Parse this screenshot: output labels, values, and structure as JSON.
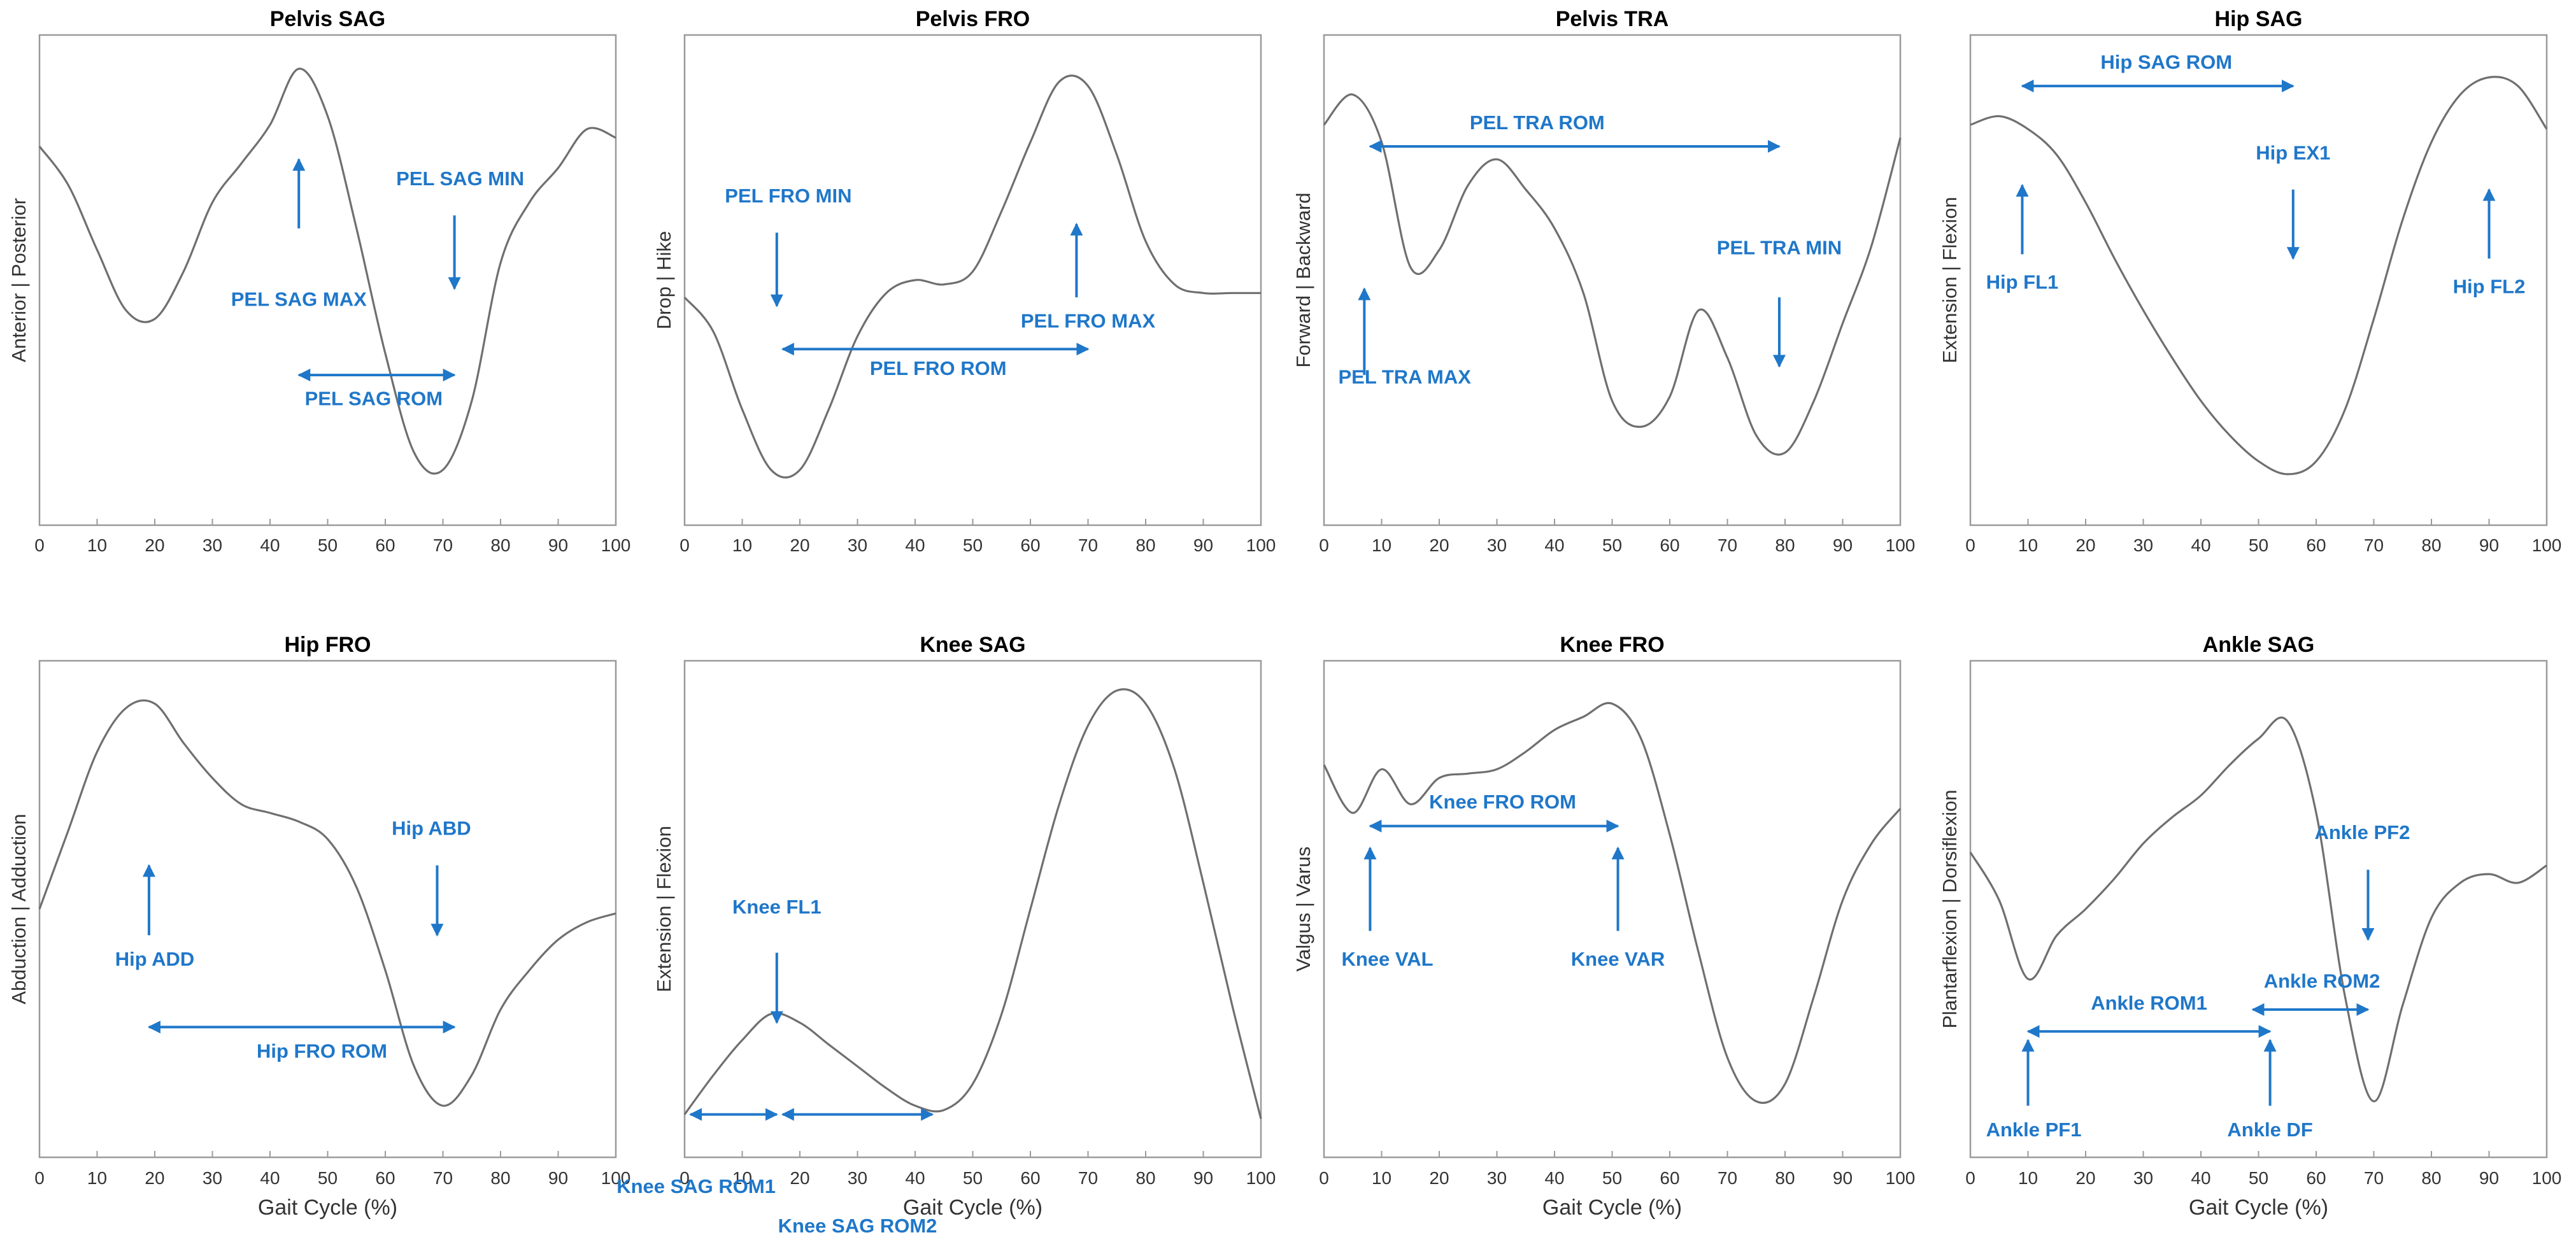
{
  "x_axis_label": "Gait Cycle (%)",
  "accent_color": "#1f77c9",
  "chart_data": [
    {
      "type": "line",
      "title": "Pelvis SAG",
      "ylabel": "Anterior | Posterior",
      "xlabel": "",
      "xlim": [
        0,
        100
      ],
      "ylim": [
        0,
        1
      ],
      "xticks": [
        0,
        10,
        20,
        30,
        40,
        50,
        60,
        70,
        80,
        90,
        100
      ],
      "x": [
        0,
        5,
        10,
        15,
        20,
        25,
        30,
        35,
        40,
        45,
        50,
        55,
        60,
        65,
        70,
        75,
        80,
        85,
        90,
        95,
        100
      ],
      "y": [
        0.81,
        0.72,
        0.57,
        0.43,
        0.41,
        0.52,
        0.68,
        0.77,
        0.86,
        0.99,
        0.88,
        0.62,
        0.33,
        0.1,
        0.06,
        0.22,
        0.54,
        0.68,
        0.76,
        0.85,
        0.83
      ],
      "annotations": [
        {
          "text": "PEL SAG MAX",
          "kind": "up",
          "x": 45,
          "y1": 0.62,
          "y2": 0.78,
          "tx": 45,
          "ty": 0.44
        },
        {
          "text": "PEL SAG MIN",
          "kind": "down",
          "x": 72,
          "y1": 0.65,
          "y2": 0.48,
          "tx": 73,
          "ty": 0.72
        },
        {
          "text": "PEL SAG ROM",
          "kind": "both",
          "x1": 45,
          "x2": 72,
          "y": 0.28,
          "tx": 58,
          "ty": 0.21
        }
      ]
    },
    {
      "type": "line",
      "title": "Pelvis FRO",
      "ylabel": "Drop | Hike",
      "xlabel": "",
      "xlim": [
        0,
        100
      ],
      "ylim": [
        0,
        1
      ],
      "xticks": [
        0,
        10,
        20,
        30,
        40,
        50,
        60,
        70,
        80,
        90,
        100
      ],
      "x": [
        0,
        5,
        10,
        15,
        20,
        25,
        30,
        35,
        40,
        45,
        50,
        55,
        60,
        65,
        70,
        75,
        80,
        85,
        90,
        95,
        100
      ],
      "y": [
        0.46,
        0.38,
        0.2,
        0.06,
        0.06,
        0.2,
        0.37,
        0.47,
        0.5,
        0.49,
        0.52,
        0.66,
        0.82,
        0.96,
        0.95,
        0.79,
        0.59,
        0.49,
        0.47,
        0.47,
        0.47
      ],
      "annotations": [
        {
          "text": "PEL FRO MIN",
          "kind": "down",
          "x": 16,
          "y1": 0.61,
          "y2": 0.44,
          "tx": 18,
          "ty": 0.68
        },
        {
          "text": "PEL FRO MAX",
          "kind": "up",
          "x": 68,
          "y1": 0.46,
          "y2": 0.63,
          "tx": 70,
          "ty": 0.39
        },
        {
          "text": "PEL FRO ROM",
          "kind": "both",
          "x1": 17,
          "x2": 70,
          "y": 0.34,
          "tx": 44,
          "ty": 0.28
        }
      ]
    },
    {
      "type": "line",
      "title": "Pelvis TRA",
      "ylabel": "Forward | Backward",
      "xlabel": "",
      "xlim": [
        0,
        100
      ],
      "ylim": [
        0,
        1
      ],
      "xticks": [
        0,
        10,
        20,
        30,
        40,
        50,
        60,
        70,
        80,
        90,
        100
      ],
      "x": [
        0,
        5,
        10,
        15,
        20,
        25,
        30,
        35,
        40,
        45,
        50,
        55,
        60,
        65,
        70,
        75,
        80,
        85,
        90,
        95,
        100
      ],
      "y": [
        0.86,
        0.93,
        0.82,
        0.53,
        0.57,
        0.72,
        0.78,
        0.71,
        0.62,
        0.47,
        0.22,
        0.16,
        0.23,
        0.43,
        0.32,
        0.14,
        0.1,
        0.22,
        0.4,
        0.58,
        0.83
      ],
      "annotations": [
        {
          "text": "PEL TRA MAX",
          "kind": "up",
          "x": 7,
          "y1": 0.28,
          "y2": 0.48,
          "tx": 14,
          "ty": 0.26
        },
        {
          "text": "PEL TRA MIN",
          "kind": "down",
          "x": 79,
          "y1": 0.46,
          "y2": 0.3,
          "tx": 79,
          "ty": 0.56
        },
        {
          "text": "PEL TRA ROM",
          "kind": "both",
          "x1": 8,
          "x2": 79,
          "y": 0.81,
          "tx": 37,
          "ty": 0.85
        }
      ]
    },
    {
      "type": "line",
      "title": "Hip SAG",
      "ylabel": "Extension | Flexion",
      "xlabel": "",
      "xlim": [
        0,
        100
      ],
      "ylim": [
        0,
        1
      ],
      "xticks": [
        0,
        10,
        20,
        30,
        40,
        50,
        60,
        70,
        80,
        90,
        100
      ],
      "x": [
        0,
        5,
        10,
        15,
        20,
        25,
        30,
        35,
        40,
        45,
        50,
        55,
        60,
        65,
        70,
        75,
        80,
        85,
        90,
        95,
        100
      ],
      "y": [
        0.86,
        0.88,
        0.85,
        0.79,
        0.68,
        0.55,
        0.43,
        0.32,
        0.22,
        0.14,
        0.08,
        0.05,
        0.08,
        0.2,
        0.41,
        0.64,
        0.82,
        0.93,
        0.97,
        0.95,
        0.85
      ],
      "annotations": [
        {
          "text": "Hip SAG ROM",
          "kind": "both",
          "x1": 9,
          "x2": 56,
          "y": 0.95,
          "tx": 34,
          "ty": 0.99
        },
        {
          "text": "Hip FL1",
          "kind": "up",
          "x": 9,
          "y1": 0.56,
          "y2": 0.72,
          "tx": 9,
          "ty": 0.48
        },
        {
          "text": "Hip EX1",
          "kind": "down",
          "x": 56,
          "y1": 0.71,
          "y2": 0.55,
          "tx": 56,
          "ty": 0.78
        },
        {
          "text": "Hip FL2",
          "kind": "up",
          "x": 90,
          "y1": 0.55,
          "y2": 0.71,
          "tx": 90,
          "ty": 0.47
        }
      ]
    },
    {
      "type": "line",
      "title": "Hip FRO",
      "ylabel": "Abduction | Adduction",
      "xlabel": "Gait Cycle (%)",
      "xlim": [
        0,
        100
      ],
      "ylim": [
        0,
        1
      ],
      "xticks": [
        0,
        10,
        20,
        30,
        40,
        50,
        60,
        70,
        80,
        90,
        100
      ],
      "x": [
        0,
        5,
        10,
        15,
        20,
        25,
        30,
        35,
        40,
        45,
        50,
        55,
        60,
        65,
        70,
        75,
        80,
        85,
        90,
        95,
        100
      ],
      "y": [
        0.5,
        0.68,
        0.86,
        0.96,
        0.97,
        0.88,
        0.8,
        0.74,
        0.72,
        0.7,
        0.66,
        0.55,
        0.36,
        0.14,
        0.05,
        0.12,
        0.27,
        0.36,
        0.43,
        0.47,
        0.49
      ],
      "annotations": [
        {
          "text": "Hip ADD",
          "kind": "up",
          "x": 19,
          "y1": 0.44,
          "y2": 0.6,
          "tx": 20,
          "ty": 0.37
        },
        {
          "text": "Hip ABD",
          "kind": "down",
          "x": 69,
          "y1": 0.6,
          "y2": 0.44,
          "tx": 68,
          "ty": 0.67
        },
        {
          "text": "Hip FRO ROM",
          "kind": "both",
          "x1": 19,
          "x2": 72,
          "y": 0.23,
          "tx": 49,
          "ty": 0.16
        }
      ]
    },
    {
      "type": "line",
      "title": "Knee SAG",
      "ylabel": "Extension | Flexion",
      "xlabel": "Gait Cycle (%)",
      "xlim": [
        0,
        100
      ],
      "ylim": [
        0,
        1
      ],
      "xticks": [
        0,
        10,
        20,
        30,
        40,
        50,
        60,
        70,
        80,
        90,
        100
      ],
      "x": [
        0,
        5,
        10,
        15,
        20,
        25,
        30,
        35,
        40,
        45,
        50,
        55,
        60,
        65,
        70,
        75,
        80,
        85,
        90,
        95,
        100
      ],
      "y": [
        0.03,
        0.12,
        0.2,
        0.26,
        0.24,
        0.19,
        0.14,
        0.09,
        0.05,
        0.04,
        0.1,
        0.26,
        0.5,
        0.74,
        0.92,
        1.0,
        0.97,
        0.82,
        0.56,
        0.28,
        0.02
      ],
      "annotations": [
        {
          "text": "Knee FL1",
          "kind": "down",
          "x": 16,
          "y1": 0.4,
          "y2": 0.24,
          "tx": 16,
          "ty": 0.49
        },
        {
          "text": "Knee SAG ROM1",
          "kind": "both",
          "x1": 1,
          "x2": 16,
          "y": 0.03,
          "tx": 2,
          "ty": -0.15
        },
        {
          "text": "Knee SAG ROM2",
          "kind": "both",
          "x1": 17,
          "x2": 43,
          "y": 0.03,
          "tx": 30,
          "ty": -0.24
        }
      ]
    },
    {
      "type": "line",
      "title": "Knee FRO",
      "ylabel": "Valgus | Varus",
      "xlabel": "Gait Cycle (%)",
      "xlim": [
        0,
        100
      ],
      "ylim": [
        0,
        1
      ],
      "xticks": [
        0,
        10,
        20,
        30,
        40,
        50,
        60,
        70,
        80,
        90,
        100
      ],
      "x": [
        0,
        5,
        10,
        15,
        20,
        25,
        30,
        35,
        40,
        45,
        50,
        55,
        60,
        65,
        70,
        75,
        80,
        85,
        90,
        95,
        100
      ],
      "y": [
        0.83,
        0.72,
        0.82,
        0.74,
        0.8,
        0.81,
        0.82,
        0.86,
        0.91,
        0.94,
        0.97,
        0.89,
        0.67,
        0.4,
        0.16,
        0.06,
        0.1,
        0.3,
        0.52,
        0.65,
        0.73
      ],
      "annotations": [
        {
          "text": "Knee FRO ROM",
          "kind": "both",
          "x1": 8,
          "x2": 51,
          "y": 0.69,
          "tx": 31,
          "ty": 0.73
        },
        {
          "text": "Knee VAL",
          "kind": "up",
          "x": 8,
          "y1": 0.45,
          "y2": 0.64,
          "tx": 11,
          "ty": 0.37
        },
        {
          "text": "Knee VAR",
          "kind": "up",
          "x": 51,
          "y1": 0.45,
          "y2": 0.64,
          "tx": 51,
          "ty": 0.37
        }
      ]
    },
    {
      "type": "line",
      "title": "Ankle SAG",
      "ylabel": "Plantarflexion | Dorsiflexion",
      "xlabel": "Gait Cycle (%)",
      "xlim": [
        0,
        100
      ],
      "ylim": [
        0,
        1
      ],
      "xticks": [
        0,
        10,
        20,
        30,
        40,
        50,
        60,
        70,
        80,
        90,
        100
      ],
      "x": [
        0,
        5,
        10,
        15,
        20,
        25,
        30,
        35,
        40,
        45,
        50,
        55,
        60,
        65,
        70,
        75,
        80,
        85,
        90,
        95,
        100
      ],
      "y": [
        0.63,
        0.52,
        0.34,
        0.44,
        0.5,
        0.57,
        0.65,
        0.71,
        0.76,
        0.83,
        0.89,
        0.93,
        0.72,
        0.3,
        0.06,
        0.28,
        0.48,
        0.56,
        0.58,
        0.56,
        0.6
      ],
      "annotations": [
        {
          "text": "Ankle PF2",
          "kind": "down",
          "x": 69,
          "y1": 0.59,
          "y2": 0.43,
          "tx": 68,
          "ty": 0.66
        },
        {
          "text": "Ankle ROM2",
          "kind": "both",
          "x1": 49,
          "x2": 69,
          "y": 0.27,
          "tx": 61,
          "ty": 0.32
        },
        {
          "text": "Ankle ROM1",
          "kind": "both",
          "x1": 10,
          "x2": 52,
          "y": 0.22,
          "tx": 31,
          "ty": 0.27
        },
        {
          "text": "Ankle PF1",
          "kind": "up",
          "x": 10,
          "y1": 0.05,
          "y2": 0.2,
          "tx": 11,
          "ty": -0.02
        },
        {
          "text": "Ankle DF",
          "kind": "up",
          "x": 52,
          "y1": 0.05,
          "y2": 0.2,
          "tx": 52,
          "ty": -0.02
        }
      ]
    }
  ]
}
